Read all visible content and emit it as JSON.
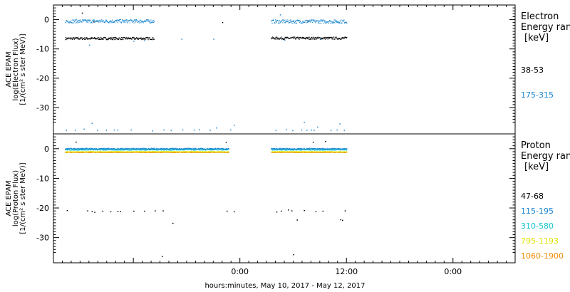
{
  "xlabel": "hours:minutes, May 10, 2017 - May 12, 2017",
  "chart_data": [
    {
      "type": "scatter",
      "ylabel": [
        "ACE EPAM",
        "log(Electron Flux)",
        "[1/(cm² s ster MeV)]"
      ],
      "ylim": [
        -39,
        5
      ],
      "yticks": [
        0,
        -10,
        -20,
        -30
      ],
      "xlim": [
        -21,
        31
      ],
      "xticks": [
        0,
        12,
        24
      ],
      "xtick_labels": [
        "0:00",
        "12:00",
        "0:00"
      ],
      "legend": {
        "title_line1": "Electron",
        "title_line2": "Energy range",
        "unit": "keV",
        "entries": [
          {
            "label": "38-53",
            "color": "#000000"
          },
          {
            "label": "175-315",
            "color": "#1a86d0"
          }
        ]
      },
      "series": [
        {
          "name": "38-53",
          "color": "#000000",
          "segments": [
            {
              "x_start": -19.7,
              "x_end": -9.7,
              "level": -6.3,
              "jitter": 0.4
            },
            {
              "x_start": 3.5,
              "x_end": 12.0,
              "level": -6.2,
              "jitter": 0.4
            }
          ],
          "outliers": [
            [
              -17.8,
              2.4
            ],
            [
              -16.5,
              -0.6
            ],
            [
              -2.0,
              -0.8
            ],
            [
              7.6,
              -0.2
            ]
          ]
        },
        {
          "name": "175-315",
          "color": "#1a86d0",
          "segments": [
            {
              "x_start": -19.7,
              "x_end": -9.7,
              "level": -0.4,
              "jitter": 0.6
            },
            {
              "x_start": 3.5,
              "x_end": 12.0,
              "level": -0.5,
              "jitter": 0.6
            }
          ],
          "outliers": [
            [
              -17.0,
              -8.5
            ],
            [
              -12.0,
              -7.2
            ],
            [
              -10.8,
              -7.0
            ],
            [
              -6.6,
              -6.5
            ],
            [
              -3.0,
              -6.5
            ],
            [
              5.0,
              -6.8
            ],
            [
              9.0,
              -6.6
            ],
            [
              4.5,
              1.8
            ],
            [
              -19.6,
              -37.6
            ],
            [
              -18.6,
              -37.6
            ],
            [
              -17.6,
              -37.2
            ],
            [
              -16.7,
              -35.2
            ],
            [
              -16.1,
              -37.6
            ],
            [
              -15.1,
              -37.6
            ],
            [
              -14.2,
              -37.5
            ],
            [
              -13.8,
              -37.5
            ],
            [
              -12.3,
              -37.5
            ],
            [
              -9.9,
              -37.8
            ],
            [
              -8.6,
              -37.5
            ],
            [
              -7.8,
              -37.6
            ],
            [
              -6.5,
              -37.5
            ],
            [
              -5.2,
              -37.5
            ],
            [
              -4.6,
              -37.4
            ],
            [
              -3.4,
              -37.6
            ],
            [
              -2.7,
              -36.8
            ],
            [
              -1.1,
              -37.5
            ],
            [
              -0.7,
              -35.9
            ],
            [
              4.0,
              -37.6
            ],
            [
              5.2,
              -37.4
            ],
            [
              5.9,
              -37.7
            ],
            [
              6.9,
              -37.5
            ],
            [
              7.2,
              -34.9
            ],
            [
              7.5,
              -37.6
            ],
            [
              8.0,
              -37.5
            ],
            [
              8.3,
              -37.6
            ],
            [
              8.7,
              -36.5
            ],
            [
              10.2,
              -37.6
            ],
            [
              10.9,
              -37.5
            ],
            [
              11.2,
              -35.4
            ],
            [
              11.7,
              -37.6
            ]
          ]
        }
      ]
    },
    {
      "type": "scatter",
      "ylabel": [
        "ACE EPAM",
        "log(Proton Flux)",
        "[1/(cm² s ster MeV)]"
      ],
      "ylim": [
        -38.5,
        5
      ],
      "yticks": [
        0,
        -10,
        -20,
        -30
      ],
      "xlim": [
        -21,
        31
      ],
      "xticks": [
        0,
        12,
        24
      ],
      "xtick_labels": [
        "0:00",
        "12:00",
        "0:00"
      ],
      "legend": {
        "title_line1": "Proton",
        "title_line2": "Energy range",
        "unit": "keV",
        "entries": [
          {
            "label": "47-68",
            "color": "#000000"
          },
          {
            "label": "115-195",
            "color": "#1a86d0"
          },
          {
            "label": "310-580",
            "color": "#17c4cc"
          },
          {
            "label": "795-1193",
            "color": "#e0e000"
          },
          {
            "label": "1060-1900",
            "color": "#f08c00"
          }
        ]
      },
      "series": [
        {
          "name": "1060-1900",
          "color": "#f08c00",
          "segments": [
            {
              "x_start": -19.7,
              "x_end": -1.3,
              "level": -1.1,
              "jitter": 0.1
            },
            {
              "x_start": 3.5,
              "x_end": 12.0,
              "level": -1.1,
              "jitter": 0.1
            }
          ],
          "outliers": []
        },
        {
          "name": "795-1193",
          "color": "#e0e000",
          "segments": [
            {
              "x_start": -19.7,
              "x_end": -1.3,
              "level": -0.9,
              "jitter": 0.1
            },
            {
              "x_start": 3.5,
              "x_end": 12.0,
              "level": -0.9,
              "jitter": 0.1
            }
          ],
          "outliers": []
        },
        {
          "name": "310-580",
          "color": "#17c4cc",
          "segments": [
            {
              "x_start": -19.7,
              "x_end": -1.3,
              "level": -0.2,
              "jitter": 0.2
            },
            {
              "x_start": 3.5,
              "x_end": 12.0,
              "level": -0.2,
              "jitter": 0.2
            }
          ],
          "outliers": []
        },
        {
          "name": "115-195",
          "color": "#1a86d0",
          "segments": [
            {
              "x_start": -19.7,
              "x_end": -1.3,
              "level": 0.1,
              "jitter": 0.2
            },
            {
              "x_start": 3.5,
              "x_end": 12.0,
              "level": 0.1,
              "jitter": 0.2
            }
          ],
          "outliers": []
        },
        {
          "name": "47-68",
          "color": "#000000",
          "segments": [],
          "outliers": [
            [
              -18.5,
              2.4
            ],
            [
              -1.6,
              2.3
            ],
            [
              8.2,
              2.3
            ],
            [
              9.6,
              2.6
            ],
            [
              -19.5,
              -20.7
            ],
            [
              -17.2,
              -20.8
            ],
            [
              -16.7,
              -21.0
            ],
            [
              -16.4,
              -21.3
            ],
            [
              -15.5,
              -20.9
            ],
            [
              -14.6,
              -21.1
            ],
            [
              -13.8,
              -21.0
            ],
            [
              -13.5,
              -21.0
            ],
            [
              -12.0,
              -20.9
            ],
            [
              -10.8,
              -20.9
            ],
            [
              -9.6,
              -20.8
            ],
            [
              -8.7,
              -20.8
            ],
            [
              -7.6,
              -25.0
            ],
            [
              -1.5,
              -20.9
            ],
            [
              -0.7,
              -21.1
            ],
            [
              4.1,
              -21.2
            ],
            [
              4.6,
              -20.9
            ],
            [
              5.4,
              -20.5
            ],
            [
              5.8,
              -20.8
            ],
            [
              6.4,
              -23.9
            ],
            [
              7.2,
              -20.7
            ],
            [
              8.5,
              -21.0
            ],
            [
              9.3,
              -20.9
            ],
            [
              11.3,
              -23.8
            ],
            [
              11.5,
              -24.0
            ],
            [
              11.8,
              -20.8
            ],
            [
              -8.8,
              -36.2
            ],
            [
              6.0,
              -35.6
            ]
          ]
        }
      ]
    }
  ]
}
